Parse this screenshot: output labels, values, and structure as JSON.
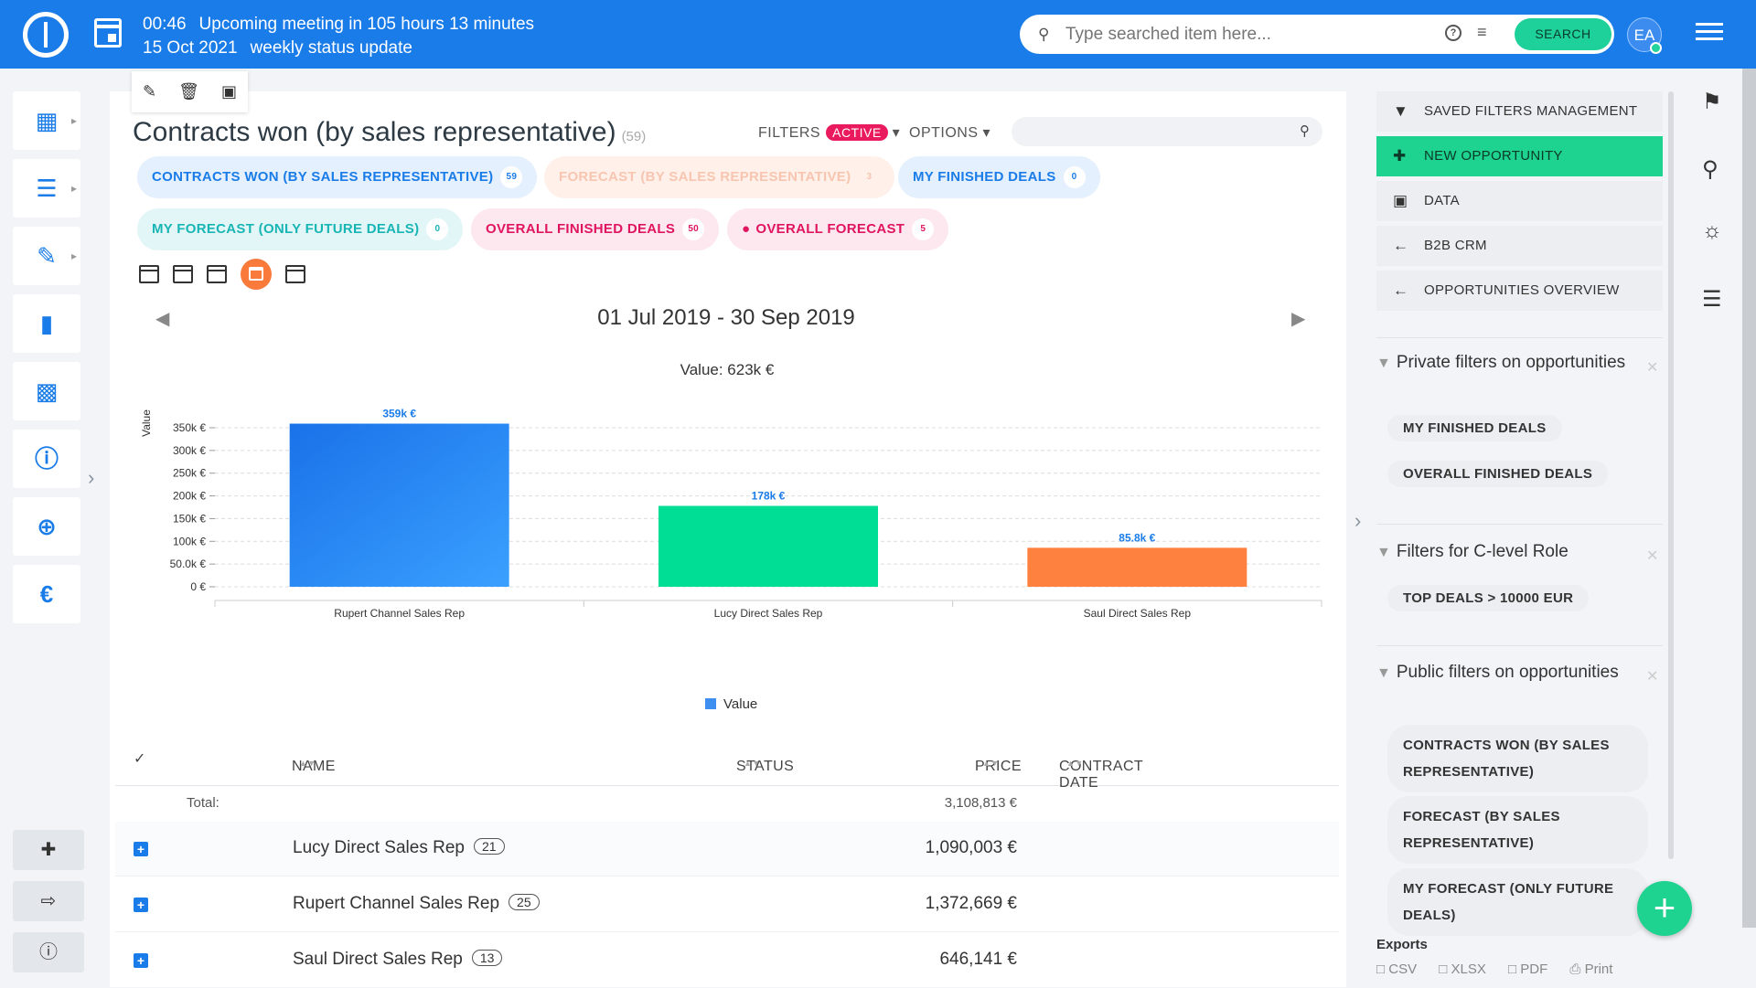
{
  "topbar": {
    "time": "00:46",
    "meeting": "Upcoming meeting in 105 hours 13 minutes",
    "date": "15 Oct 2021",
    "meeting_title": "weekly status update",
    "search_placeholder": "Type searched item here...",
    "search_button": "SEARCH",
    "avatar_initials": "EA"
  },
  "page": {
    "title": "Contracts won (by sales representative)",
    "count": "(59)",
    "filters_label": "FILTERS",
    "filters_state": "ACTIVE",
    "options_label": "OPTIONS"
  },
  "chips": [
    {
      "label": "CONTRACTS WON (BY SALES REPRESENTATIVE)",
      "count": "59"
    },
    {
      "label": "FORECAST (BY SALES REPRESENTATIVE)",
      "count": "3"
    },
    {
      "label": "MY FINISHED DEALS",
      "count": "0"
    },
    {
      "label": "MY FORECAST (ONLY FUTURE DEALS)",
      "count": "0"
    },
    {
      "label": "OVERALL FINISHED DEALS",
      "count": "50"
    },
    {
      "label": "OVERALL FORECAST",
      "count": "5"
    }
  ],
  "date_range": "01 Jul 2019 - 30 Sep 2019",
  "chart_data": {
    "type": "bar",
    "title": "Value: 623k €",
    "ylabel": "Value",
    "xlabel": "",
    "categories": [
      "Rupert Channel Sales Rep",
      "Lucy Direct Sales Rep",
      "Saul Direct Sales Rep"
    ],
    "values": [
      359,
      178,
      85.8
    ],
    "value_labels": [
      "359k €",
      "178k €",
      "85.8k €"
    ],
    "colors": [
      "#1a7ce8",
      "#00dd95",
      "#ff8140"
    ],
    "yticks": [
      "0 €",
      "50.0k €",
      "100k €",
      "150k €",
      "200k €",
      "250k €",
      "300k €",
      "350k €"
    ],
    "ylim": [
      0,
      350
    ],
    "legend": [
      "Value"
    ],
    "legend_color": "#3f8ff0",
    "grid": true,
    "legend_position": "bottom"
  },
  "table": {
    "headers": {
      "name": "NAME",
      "status": "STATUS",
      "price": "PRICE",
      "contract_date": "CONTRACT DATE"
    },
    "total_label": "Total:",
    "total_value": "3,108,813 €",
    "rows": [
      {
        "name": "Lucy Direct Sales Rep",
        "count": "21",
        "price": "1,090,003 €"
      },
      {
        "name": "Rupert Channel Sales Rep",
        "count": "25",
        "price": "1,372,669 €"
      },
      {
        "name": "Saul Direct Sales Rep",
        "count": "13",
        "price": "646,141 €"
      }
    ]
  },
  "right_panel": {
    "buttons": [
      "SAVED FILTERS MANAGEMENT",
      "NEW OPPORTUNITY",
      "DATA",
      "B2B CRM",
      "OPPORTUNITIES OVERVIEW"
    ],
    "private_title": "Private filters on opportunities",
    "private_filters": [
      "MY FINISHED DEALS",
      "OVERALL FINISHED DEALS"
    ],
    "clevel_title": "Filters for C-level Role",
    "clevel_filters": [
      "TOP DEALS > 10000 EUR"
    ],
    "public_title": "Public filters on opportunities",
    "public_filters": [
      "CONTRACTS WON (BY SALES REPRESENTATIVE)",
      "FORECAST (BY SALES REPRESENTATIVE)",
      "MY FORECAST (ONLY FUTURE DEALS)"
    ],
    "exports_label": "Exports",
    "export_links": [
      "CSV",
      "XLSX",
      "PDF",
      "Print"
    ]
  }
}
